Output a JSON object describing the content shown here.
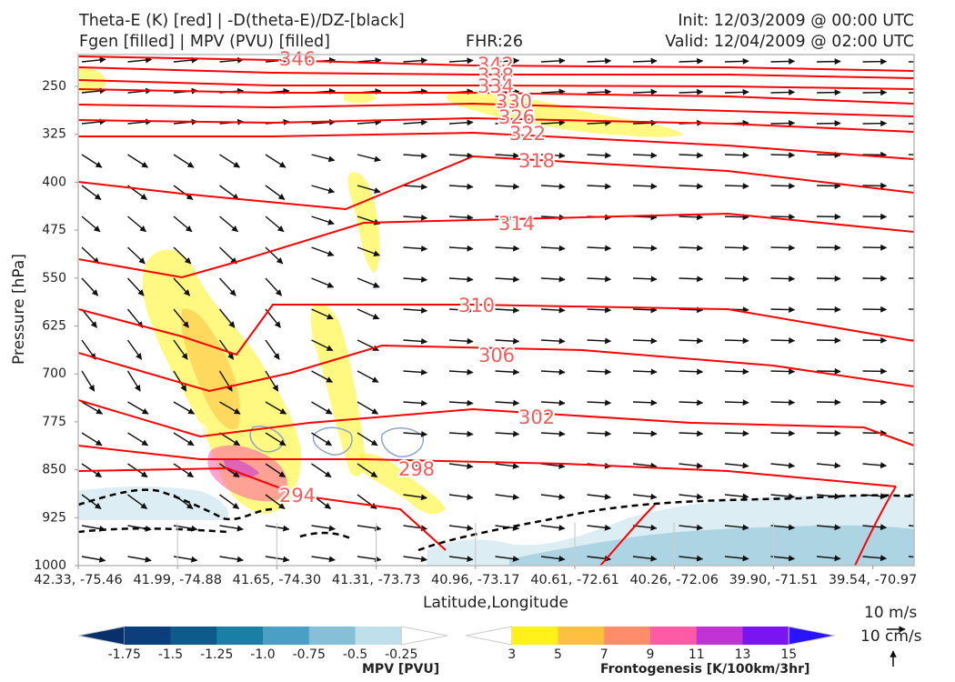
{
  "header": {
    "title_line1_left": "Theta-E (K) [red] | -D(theta-E)/DZ-[black]",
    "title_line2_left": "Fgen [filled] | MPV (PVU) [filled]",
    "fhr": "FHR:26",
    "init": "Init: 12/03/2009 @ 00:00 UTC",
    "valid": "Valid: 12/04/2009 @ 02:00 UTC"
  },
  "chart_data": {
    "type": "cross-section",
    "ylabel": "Pressure [hPa]",
    "xlabel": "Latitude,Longitude",
    "y_ticks": [
      "250",
      "325",
      "400",
      "475",
      "550",
      "625",
      "700",
      "775",
      "850",
      "925",
      "1000"
    ],
    "y_range_hPa": [
      1000,
      175
    ],
    "x_ticks": [
      "42.33, -75.46",
      "41.99, -74.88",
      "41.65, -74.30",
      "41.31, -73.73",
      "40.96, -73.17",
      "40.61, -72.61",
      "40.26, -72.06",
      "39.90, -71.51",
      "39.54, -70.97"
    ],
    "theta_e_contour_labels": [
      "346",
      "342",
      "338",
      "334",
      "330",
      "326",
      "322",
      "318",
      "314",
      "310",
      "306",
      "302",
      "298",
      "294"
    ],
    "theta_e_color": "#ff0000",
    "dthetae_dz_color": "#000000",
    "mpv_colorbar": {
      "label": "MPV [PVU]",
      "ticks": [
        "-1.75",
        "-1.5",
        "-1.25",
        "-1.0",
        "-0.75",
        "-0.5",
        "-0.25"
      ],
      "colors": [
        "#08306b",
        "#0b3e7a",
        "#0d5b8a",
        "#1a7fa5",
        "#4aa0c4",
        "#87c0d6",
        "#bfe0ea",
        "#ffffff"
      ]
    },
    "fgen_colorbar": {
      "label": "Frontogenesis [K/100km/3hr]",
      "ticks": [
        "3",
        "5",
        "7",
        "9",
        "11",
        "13",
        "15"
      ],
      "colors": [
        "#ffffff",
        "#fff21a",
        "#ffc040",
        "#ff8c6a",
        "#ff5aa5",
        "#c233d6",
        "#7a14f0",
        "#2a14ff"
      ]
    },
    "vector_reference": {
      "horizontal": "10 m/s",
      "vertical": "10 cm/s"
    }
  }
}
